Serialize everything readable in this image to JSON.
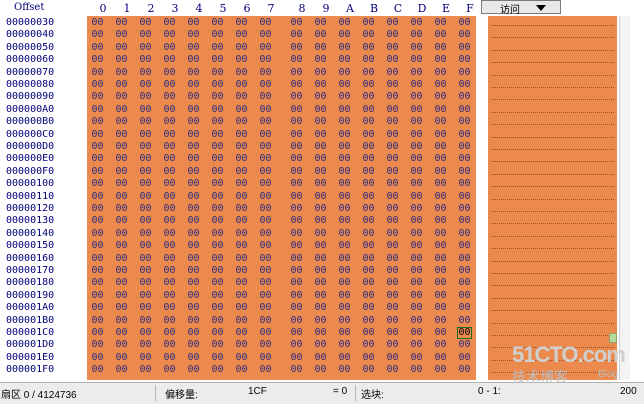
{
  "header": {
    "offset_label": "Offset",
    "columns": [
      "0",
      "1",
      "2",
      "3",
      "4",
      "5",
      "6",
      "7",
      "8",
      "9",
      "A",
      "B",
      "C",
      "D",
      "E",
      "F"
    ],
    "access_button": "访问"
  },
  "hex": {
    "offsets": [
      "00000030",
      "00000040",
      "00000050",
      "00000060",
      "00000070",
      "00000080",
      "00000090",
      "000000A0",
      "000000B0",
      "000000C0",
      "000000D0",
      "000000E0",
      "000000F0",
      "00000100",
      "00000110",
      "00000120",
      "00000130",
      "00000140",
      "00000150",
      "00000160",
      "00000170",
      "00000180",
      "00000190",
      "000001A0",
      "000001B0",
      "000001C0",
      "000001D0",
      "000001E0",
      "000001F0"
    ],
    "byte_value": "00",
    "cursor_row": 25,
    "cursor_col": 15
  },
  "watermark": {
    "site": "51CTO.com",
    "sub": "技术博客",
    "blog": "Blog"
  },
  "status": {
    "sector": "扇区 0 / 4124736",
    "offset_label": "偏移量:",
    "offset_value": "1CF",
    "equals_value": "= 0",
    "selection_label": "选块:",
    "selection_value": "0 - 1:",
    "right_value": "200"
  }
}
